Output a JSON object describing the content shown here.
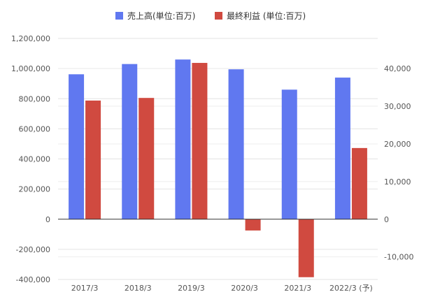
{
  "chart_data": {
    "type": "bar",
    "categories": [
      "2017/3",
      "2018/3",
      "2019/3",
      "2020/3",
      "2021/3",
      "2022/3 (予)"
    ],
    "series": [
      {
        "name": "売上高(単位:百万)",
        "axis": "left",
        "color": "#6078f0",
        "values": [
          962000,
          1030000,
          1060000,
          995000,
          860000,
          940000
        ]
      },
      {
        "name": "最終利益 (単位:百万)",
        "axis": "right",
        "color": "#d04a40",
        "values": [
          31500,
          32200,
          41500,
          -3000,
          -15400,
          18900
        ]
      }
    ],
    "y_left": {
      "ylim": [
        -400000,
        1200000
      ],
      "ticks": [
        1200000,
        1000000,
        800000,
        600000,
        400000,
        200000,
        0,
        -200000,
        -400000
      ],
      "tick_labels": [
        "1,200,000",
        "1,000,000",
        "800,000",
        "600,000",
        "400,000",
        "200,000",
        "0",
        "-200,000",
        "-400,000"
      ]
    },
    "y_right": {
      "ylim": [
        -16000,
        48000
      ],
      "ticks": [
        40000,
        30000,
        20000,
        10000,
        0,
        -10000
      ],
      "tick_labels": [
        "40,000",
        "30,000",
        "20,000",
        "10,000",
        "0",
        "-10,000"
      ]
    },
    "legend_position": "top",
    "grid": true
  }
}
